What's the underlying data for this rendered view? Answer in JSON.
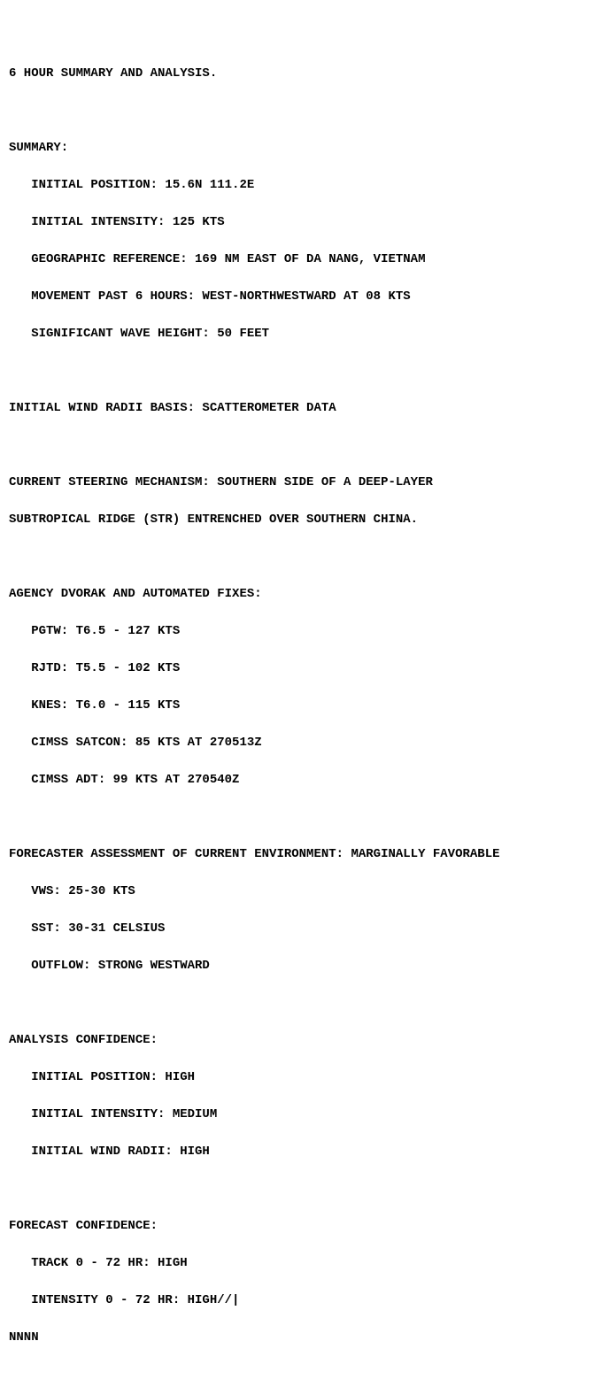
{
  "colors": {
    "text": "#000000",
    "background": "#ffffff"
  },
  "font": {
    "family": "Courier New",
    "size_pt": 14,
    "weight": "bold",
    "line_height": 1.5
  },
  "title": "6 HOUR SUMMARY AND ANALYSIS.",
  "summary": {
    "header": "SUMMARY:",
    "items": [
      "INITIAL POSITION: 15.6N 111.2E",
      "INITIAL INTENSITY: 125 KTS",
      "GEOGRAPHIC REFERENCE: 169 NM EAST OF DA NANG, VIETNAM",
      "MOVEMENT PAST 6 HOURS: WEST-NORTHWESTWARD AT 08 KTS",
      "SIGNIFICANT WAVE HEIGHT: 50 FEET"
    ]
  },
  "wind_radii_basis": "INITIAL WIND RADII BASIS: SCATTEROMETER DATA",
  "steering": {
    "line1": "CURRENT STEERING MECHANISM: SOUTHERN SIDE OF A DEEP-LAYER",
    "line2": "SUBTROPICAL RIDGE (STR) ENTRENCHED OVER SOUTHERN CHINA."
  },
  "dvorak": {
    "header": "AGENCY DVORAK AND AUTOMATED FIXES:",
    "items": [
      "PGTW: T6.5 - 127 KTS",
      "RJTD: T5.5 - 102 KTS",
      "KNES: T6.0 - 115 KTS",
      "CIMSS SATCON: 85 KTS AT 270513Z",
      "CIMSS ADT: 99 KTS AT 270540Z"
    ]
  },
  "environment": {
    "header": "FORECASTER ASSESSMENT OF CURRENT ENVIRONMENT: MARGINALLY FAVORABLE",
    "items": [
      "VWS: 25-30 KTS",
      "SST: 30-31 CELSIUS",
      "OUTFLOW: STRONG WESTWARD"
    ]
  },
  "analysis_conf": {
    "header": "ANALYSIS CONFIDENCE:",
    "items": [
      "INITIAL POSITION: HIGH",
      "INITIAL INTENSITY: MEDIUM",
      "INITIAL WIND RADII: HIGH"
    ]
  },
  "forecast_conf": {
    "header": "FORECAST CONFIDENCE:",
    "items": [
      "TRACK 0 - 72 HR: HIGH",
      "INTENSITY 0 - 72 HR: HIGH//"
    ]
  },
  "terminator": "NNNN",
  "cursor_glyph": "|"
}
